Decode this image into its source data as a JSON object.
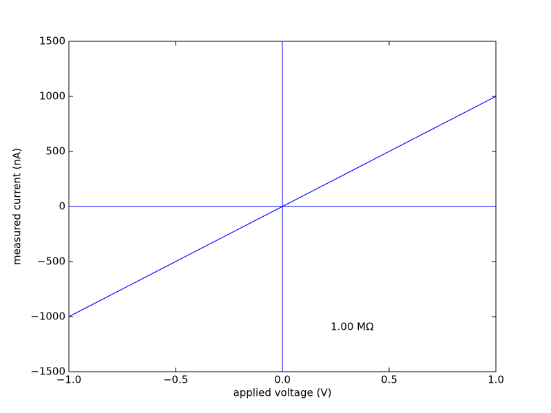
{
  "chart_data": {
    "type": "line",
    "x_label": "applied voltage (V)",
    "y_label": "measured current (nA)",
    "annotation": "1.00 MΩ",
    "series": [
      {
        "color": "#0000ff",
        "x": [
          -1.0,
          -0.75,
          -0.5,
          -0.25,
          0.0,
          0.25,
          0.5,
          0.75,
          1.0
        ],
        "values": [
          -1000,
          -750,
          -500,
          -250,
          0,
          250,
          500,
          750,
          1000
        ]
      }
    ],
    "axhline": 0,
    "axvline": 0,
    "xlim": [
      -1.0,
      1.0
    ],
    "xticks": [
      {
        "value": -1.0,
        "label": "−1.0"
      },
      {
        "value": -0.5,
        "label": "−0.5"
      },
      {
        "value": 0.0,
        "label": "0.0"
      },
      {
        "value": 0.5,
        "label": "0.5"
      },
      {
        "value": 1.0,
        "label": "1.0"
      }
    ],
    "ylim": [
      -1500,
      1500
    ],
    "yticks": [
      {
        "value": -1500,
        "label": "−1500"
      },
      {
        "value": -1000,
        "label": "−1000"
      },
      {
        "value": -500,
        "label": "−500"
      },
      0,
      500,
      1000,
      1500
    ]
  }
}
